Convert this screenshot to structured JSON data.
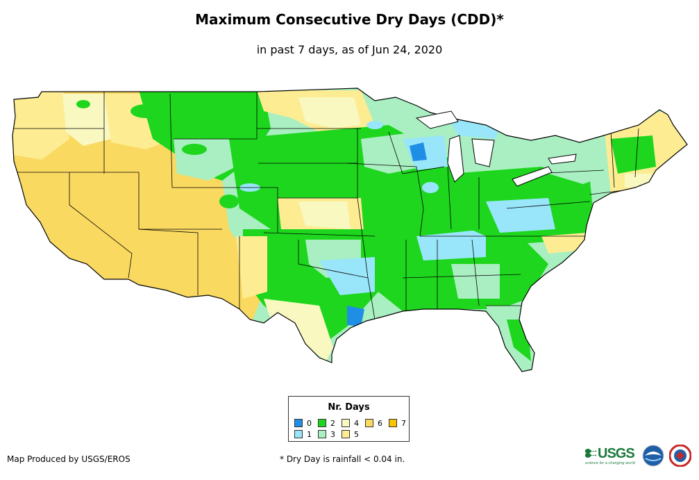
{
  "title": "Maximum Consecutive Dry Days (CDD)*",
  "subtitle": "in past 7 days, as of Jun 24, 2020",
  "legend": {
    "title": "Nr. Days",
    "items": [
      {
        "label": "0",
        "color": "#1f8fe6"
      },
      {
        "label": "1",
        "color": "#99e6fa"
      },
      {
        "label": "2",
        "color": "#1dd61d"
      },
      {
        "label": "3",
        "color": "#a9efc1"
      },
      {
        "label": "4",
        "color": "#f8f8c0"
      },
      {
        "label": "5",
        "color": "#fdec92"
      },
      {
        "label": "6",
        "color": "#fad961"
      },
      {
        "label": "7",
        "color": "#f9c300"
      }
    ]
  },
  "credit": "Map Produced by USGS/EROS",
  "note": "* Dry Day is rainfall < 0.04 in.",
  "logos": {
    "usgs": "USGS",
    "usgs_tagline": "science for a changing world",
    "noaa": "noaa-logo",
    "nws": "nws-logo"
  }
}
